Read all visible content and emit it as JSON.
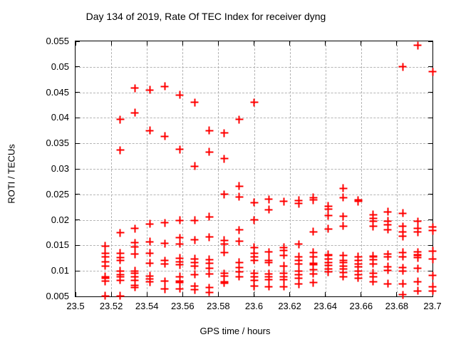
{
  "title": "Day 134 of 2019, Rate Of TEC Index for receiver dyng",
  "chart_data": {
    "type": "scatter",
    "title": "Day 134 of 2019, Rate Of TEC Index for receiver dyng",
    "xlabel": "GPS time / hours",
    "ylabel": "ROTI / TECUs",
    "xlim": [
      23.5,
      23.7
    ],
    "ylim": [
      0.005,
      0.055
    ],
    "x_ticks": [
      "23.5",
      "23.52",
      "23.54",
      "23.56",
      "23.58",
      "23.6",
      "23.62",
      "23.64",
      "23.66",
      "23.68",
      "23.7"
    ],
    "y_ticks": [
      "0.005",
      "0.01",
      "0.015",
      "0.02",
      "0.025",
      "0.03",
      "0.035",
      "0.04",
      "0.045",
      "0.05",
      "0.055"
    ],
    "grid": true,
    "legend": "none",
    "marker": "plus",
    "marker_color": "#ff0000",
    "points": [
      [
        23.5167,
        0.0149
      ],
      [
        23.5167,
        0.0134
      ],
      [
        23.5167,
        0.0128
      ],
      [
        23.5167,
        0.0118
      ],
      [
        23.5167,
        0.011
      ],
      [
        23.5167,
        0.0089
      ],
      [
        23.5167,
        0.0085
      ],
      [
        23.5167,
        0.008
      ],
      [
        23.5167,
        0.0051
      ],
      [
        23.525,
        0.0397
      ],
      [
        23.525,
        0.0337
      ],
      [
        23.525,
        0.0175
      ],
      [
        23.525,
        0.0135
      ],
      [
        23.525,
        0.0126
      ],
      [
        23.525,
        0.0121
      ],
      [
        23.525,
        0.01
      ],
      [
        23.525,
        0.0093
      ],
      [
        23.525,
        0.0088
      ],
      [
        23.525,
        0.0082
      ],
      [
        23.525,
        0.0051
      ],
      [
        23.5333,
        0.0458
      ],
      [
        23.5333,
        0.041
      ],
      [
        23.5333,
        0.0183
      ],
      [
        23.5333,
        0.0155
      ],
      [
        23.5333,
        0.0147
      ],
      [
        23.5333,
        0.0133
      ],
      [
        23.5333,
        0.01
      ],
      [
        23.5333,
        0.0096
      ],
      [
        23.5333,
        0.0089
      ],
      [
        23.5333,
        0.0082
      ],
      [
        23.5333,
        0.0071
      ],
      [
        23.5333,
        0.0068
      ],
      [
        23.5417,
        0.0455
      ],
      [
        23.5417,
        0.0375
      ],
      [
        23.5417,
        0.0192
      ],
      [
        23.5417,
        0.0157
      ],
      [
        23.5417,
        0.0135
      ],
      [
        23.5417,
        0.0115
      ],
      [
        23.5417,
        0.009
      ],
      [
        23.5417,
        0.0084
      ],
      [
        23.5417,
        0.0078
      ],
      [
        23.55,
        0.0462
      ],
      [
        23.55,
        0.0364
      ],
      [
        23.55,
        0.0194
      ],
      [
        23.55,
        0.0154
      ],
      [
        23.55,
        0.012
      ],
      [
        23.55,
        0.0114
      ],
      [
        23.55,
        0.008
      ],
      [
        23.55,
        0.0064
      ],
      [
        23.5583,
        0.0445
      ],
      [
        23.5583,
        0.0338
      ],
      [
        23.5583,
        0.0199
      ],
      [
        23.5583,
        0.0165
      ],
      [
        23.5583,
        0.0153
      ],
      [
        23.5583,
        0.0125
      ],
      [
        23.5583,
        0.0118
      ],
      [
        23.5583,
        0.0112
      ],
      [
        23.5583,
        0.0089
      ],
      [
        23.5583,
        0.008
      ],
      [
        23.5583,
        0.0077
      ],
      [
        23.5583,
        0.0065
      ],
      [
        23.5667,
        0.043
      ],
      [
        23.5667,
        0.0305
      ],
      [
        23.5667,
        0.0199
      ],
      [
        23.5667,
        0.0161
      ],
      [
        23.5667,
        0.0124
      ],
      [
        23.5667,
        0.0117
      ],
      [
        23.5667,
        0.011
      ],
      [
        23.5667,
        0.0093
      ],
      [
        23.5667,
        0.007
      ],
      [
        23.5667,
        0.0063
      ],
      [
        23.575,
        0.0375
      ],
      [
        23.575,
        0.0333
      ],
      [
        23.575,
        0.0206
      ],
      [
        23.575,
        0.0166
      ],
      [
        23.575,
        0.0122
      ],
      [
        23.575,
        0.0115
      ],
      [
        23.575,
        0.0105
      ],
      [
        23.575,
        0.0094
      ],
      [
        23.575,
        0.0067
      ],
      [
        23.575,
        0.0058
      ],
      [
        23.5833,
        0.037
      ],
      [
        23.5833,
        0.032
      ],
      [
        23.5833,
        0.025
      ],
      [
        23.5833,
        0.016
      ],
      [
        23.5833,
        0.0152
      ],
      [
        23.5833,
        0.0136
      ],
      [
        23.5833,
        0.0095
      ],
      [
        23.5833,
        0.009
      ],
      [
        23.5833,
        0.0078
      ],
      [
        23.5833,
        0.0076
      ],
      [
        23.5917,
        0.0397
      ],
      [
        23.5917,
        0.0266
      ],
      [
        23.5917,
        0.0245
      ],
      [
        23.5917,
        0.018
      ],
      [
        23.5917,
        0.0158
      ],
      [
        23.5917,
        0.0117
      ],
      [
        23.5917,
        0.0107
      ],
      [
        23.5917,
        0.0098
      ],
      [
        23.5917,
        0.0089
      ],
      [
        23.6,
        0.043
      ],
      [
        23.6,
        0.0234
      ],
      [
        23.6,
        0.02
      ],
      [
        23.6,
        0.0146
      ],
      [
        23.6,
        0.0135
      ],
      [
        23.6,
        0.0128
      ],
      [
        23.6,
        0.0121
      ],
      [
        23.6,
        0.0095
      ],
      [
        23.6,
        0.0088
      ],
      [
        23.6,
        0.0082
      ],
      [
        23.6,
        0.007
      ],
      [
        23.6083,
        0.024
      ],
      [
        23.6083,
        0.022
      ],
      [
        23.6083,
        0.0137
      ],
      [
        23.6083,
        0.0121
      ],
      [
        23.6083,
        0.0117
      ],
      [
        23.6083,
        0.0094
      ],
      [
        23.6083,
        0.0088
      ],
      [
        23.6083,
        0.0083
      ],
      [
        23.6083,
        0.0069
      ],
      [
        23.6167,
        0.0236
      ],
      [
        23.6167,
        0.0146
      ],
      [
        23.6167,
        0.014
      ],
      [
        23.6167,
        0.0131
      ],
      [
        23.6167,
        0.011
      ],
      [
        23.6167,
        0.0096
      ],
      [
        23.6167,
        0.0089
      ],
      [
        23.6167,
        0.0083
      ],
      [
        23.6167,
        0.0069
      ],
      [
        23.625,
        0.0238
      ],
      [
        23.625,
        0.0232
      ],
      [
        23.625,
        0.0152
      ],
      [
        23.625,
        0.0128
      ],
      [
        23.625,
        0.0121
      ],
      [
        23.625,
        0.0113
      ],
      [
        23.625,
        0.01
      ],
      [
        23.625,
        0.0092
      ],
      [
        23.625,
        0.0085
      ],
      [
        23.625,
        0.0074
      ],
      [
        23.6333,
        0.0244
      ],
      [
        23.6333,
        0.0239
      ],
      [
        23.6333,
        0.0177
      ],
      [
        23.6333,
        0.0136
      ],
      [
        23.6333,
        0.0128
      ],
      [
        23.6333,
        0.0115
      ],
      [
        23.6333,
        0.0112
      ],
      [
        23.6333,
        0.0103
      ],
      [
        23.6333,
        0.0094
      ],
      [
        23.6333,
        0.0077
      ],
      [
        23.6417,
        0.0227
      ],
      [
        23.6417,
        0.0221
      ],
      [
        23.6417,
        0.0208
      ],
      [
        23.6417,
        0.0182
      ],
      [
        23.6417,
        0.0132
      ],
      [
        23.6417,
        0.013
      ],
      [
        23.6417,
        0.0123
      ],
      [
        23.6417,
        0.0117
      ],
      [
        23.6417,
        0.0111
      ],
      [
        23.6417,
        0.0104
      ],
      [
        23.6417,
        0.0098
      ],
      [
        23.65,
        0.0262
      ],
      [
        23.65,
        0.0244
      ],
      [
        23.65,
        0.0207
      ],
      [
        23.65,
        0.0188
      ],
      [
        23.65,
        0.013
      ],
      [
        23.65,
        0.0121
      ],
      [
        23.65,
        0.0116
      ],
      [
        23.65,
        0.011
      ],
      [
        23.65,
        0.0104
      ],
      [
        23.65,
        0.0097
      ],
      [
        23.65,
        0.0089
      ],
      [
        23.6583,
        0.0239
      ],
      [
        23.6583,
        0.0236
      ],
      [
        23.6583,
        0.0128
      ],
      [
        23.6583,
        0.0121
      ],
      [
        23.6583,
        0.0114
      ],
      [
        23.6583,
        0.0108
      ],
      [
        23.6583,
        0.01
      ],
      [
        23.6583,
        0.0093
      ],
      [
        23.6583,
        0.0086
      ],
      [
        23.6667,
        0.021
      ],
      [
        23.6667,
        0.0203
      ],
      [
        23.6667,
        0.0197
      ],
      [
        23.6667,
        0.0187
      ],
      [
        23.6667,
        0.0129
      ],
      [
        23.6667,
        0.0127
      ],
      [
        23.6667,
        0.0122
      ],
      [
        23.6667,
        0.0114
      ],
      [
        23.6667,
        0.0096
      ],
      [
        23.6667,
        0.0089
      ],
      [
        23.6667,
        0.0079
      ],
      [
        23.675,
        0.0216
      ],
      [
        23.675,
        0.0198
      ],
      [
        23.675,
        0.019
      ],
      [
        23.675,
        0.0181
      ],
      [
        23.675,
        0.0133
      ],
      [
        23.675,
        0.0128
      ],
      [
        23.675,
        0.0108
      ],
      [
        23.675,
        0.0101
      ],
      [
        23.675,
        0.0075
      ],
      [
        23.6833,
        0.05
      ],
      [
        23.6833,
        0.0213
      ],
      [
        23.6833,
        0.0187
      ],
      [
        23.6833,
        0.0177
      ],
      [
        23.6833,
        0.0168
      ],
      [
        23.6833,
        0.0136
      ],
      [
        23.6833,
        0.0128
      ],
      [
        23.6833,
        0.0106
      ],
      [
        23.6833,
        0.01
      ],
      [
        23.6833,
        0.0075
      ],
      [
        23.6833,
        0.0053
      ],
      [
        23.6917,
        0.0542
      ],
      [
        23.6917,
        0.0197
      ],
      [
        23.6917,
        0.0184
      ],
      [
        23.6917,
        0.0176
      ],
      [
        23.6917,
        0.0137
      ],
      [
        23.6917,
        0.0132
      ],
      [
        23.6917,
        0.0131
      ],
      [
        23.6917,
        0.0126
      ],
      [
        23.6917,
        0.0105
      ],
      [
        23.6917,
        0.0079
      ],
      [
        23.6917,
        0.0061
      ],
      [
        23.7,
        0.049
      ],
      [
        23.7,
        0.0186
      ],
      [
        23.7,
        0.0179
      ],
      [
        23.7,
        0.0139
      ],
      [
        23.7,
        0.0123
      ],
      [
        23.7,
        0.0091
      ],
      [
        23.7,
        0.0069
      ],
      [
        23.7,
        0.0061
      ]
    ]
  }
}
